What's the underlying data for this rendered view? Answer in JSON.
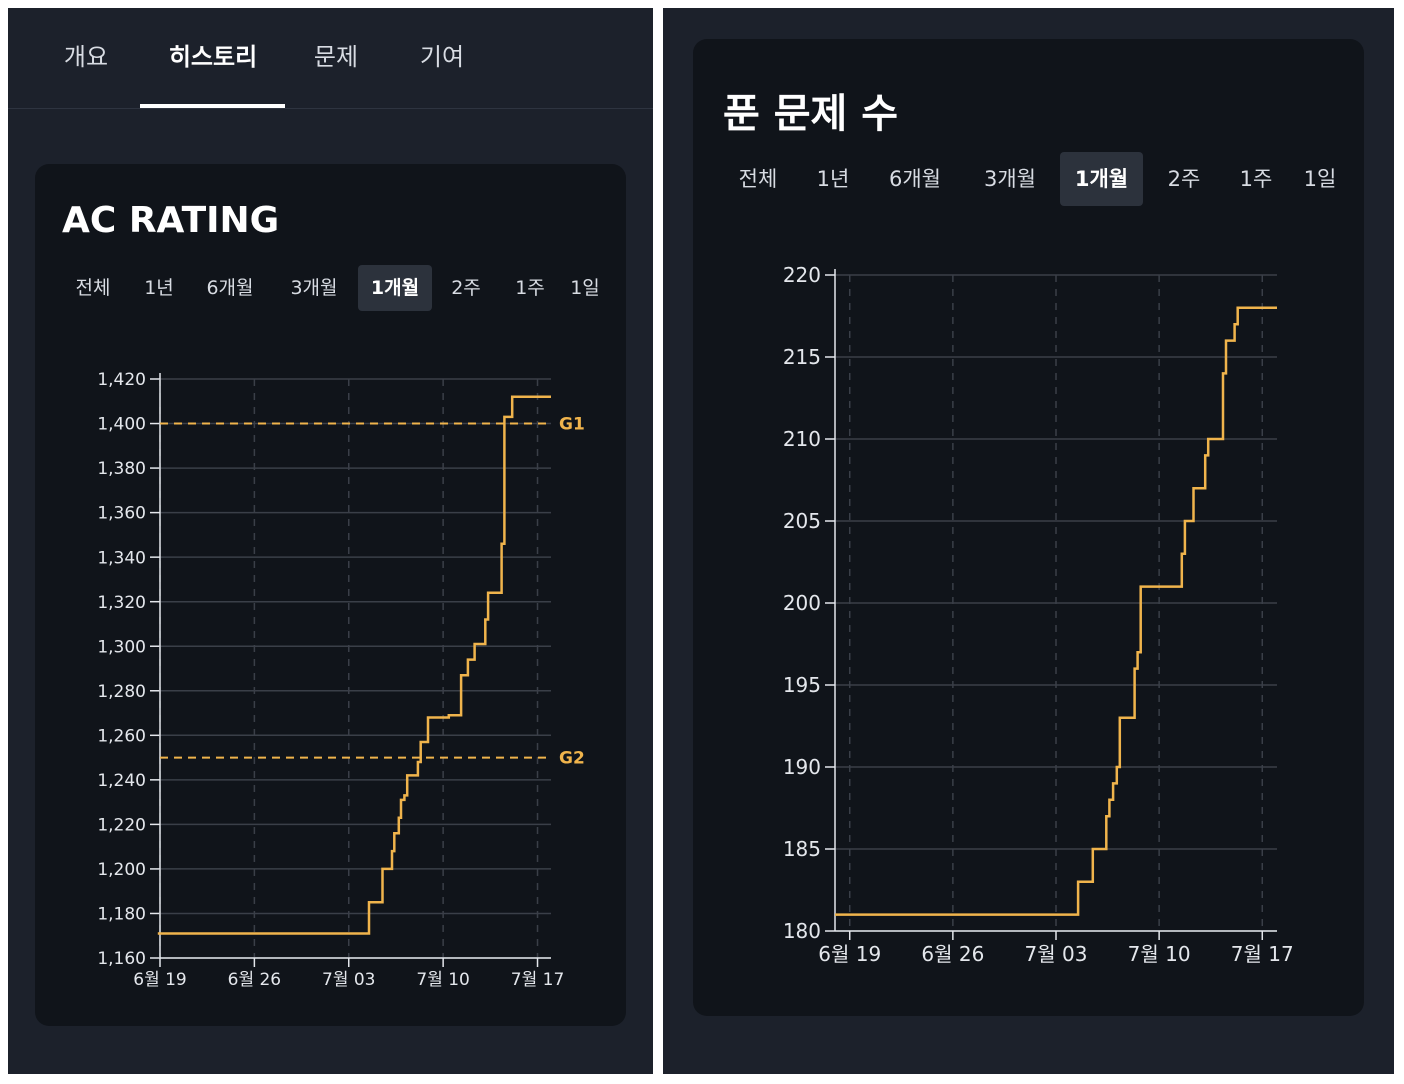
{
  "colors": {
    "series": "#f0b44c",
    "panel_bg": "#1c212b",
    "card_bg": "#10141a",
    "grid": "#3a3f48",
    "text": "#e4e7ec",
    "active_pill": "#2c323c"
  },
  "profile_tabs": [
    {
      "label": "개요",
      "active": false
    },
    {
      "label": "히스토리",
      "active": true
    },
    {
      "label": "문제",
      "active": false
    },
    {
      "label": "기여",
      "active": false
    }
  ],
  "ac_rating": {
    "title": "AC RATING",
    "ranges": [
      {
        "label": "전체",
        "active": false
      },
      {
        "label": "1년",
        "active": false
      },
      {
        "label": "6개월",
        "active": false
      },
      {
        "label": "3개월",
        "active": false
      },
      {
        "label": "1개월",
        "active": true
      },
      {
        "label": "2주",
        "active": false
      },
      {
        "label": "1주",
        "active": false
      },
      {
        "label": "1일",
        "active": false
      }
    ]
  },
  "solved_count": {
    "title": "푼 문제 수",
    "ranges": [
      {
        "label": "전체",
        "active": false
      },
      {
        "label": "1년",
        "active": false
      },
      {
        "label": "6개월",
        "active": false
      },
      {
        "label": "3개월",
        "active": false
      },
      {
        "label": "1개월",
        "active": true
      },
      {
        "label": "2주",
        "active": false
      },
      {
        "label": "1주",
        "active": false
      },
      {
        "label": "1일",
        "active": false
      }
    ]
  },
  "chart_data": [
    {
      "type": "line",
      "step": true,
      "title": "AC RATING",
      "xlabel": "",
      "ylabel": "",
      "xlim": [
        "2023-06-19",
        "2023-07-18"
      ],
      "ylim": [
        1160,
        1420
      ],
      "x_ticks": [
        "6월 19",
        "6월 26",
        "7월 03",
        "7월 10",
        "7월 17"
      ],
      "y_ticks": [
        "1,160",
        "1,180",
        "1,200",
        "1,220",
        "1,240",
        "1,260",
        "1,280",
        "1,300",
        "1,320",
        "1,340",
        "1,360",
        "1,380",
        "1,400",
        "1,420"
      ],
      "grid": true,
      "reference_lines": [
        {
          "label": "G1",
          "value": 1400
        },
        {
          "label": "G2",
          "value": 1250
        }
      ],
      "series": [
        {
          "x": [
            "2023-06-18 20:00",
            "2023-07-04 12:00",
            "2023-07-05 12:00",
            "2023-07-06 05:00",
            "2023-07-06 09:00",
            "2023-07-06 17:00",
            "2023-07-06 21:00",
            "2023-07-07 03:00",
            "2023-07-07 08:00",
            "2023-07-08 03:00",
            "2023-07-08 08:00",
            "2023-07-08 21:00",
            "2023-07-10 10:00",
            "2023-07-11 08:00",
            "2023-07-11 20:00",
            "2023-07-12 08:00",
            "2023-07-13 03:00",
            "2023-07-13 08:00",
            "2023-07-14 08:00",
            "2023-07-14 13:00",
            "2023-07-15 03:00",
            "2023-07-18 00:00"
          ],
          "y": [
            1171,
            1185,
            1200,
            1208,
            1216,
            1223,
            1231,
            1233,
            1242,
            1248,
            1257,
            1268,
            1269,
            1287,
            1294,
            1301,
            1312,
            1324,
            1346,
            1403,
            1412,
            1412
          ]
        }
      ]
    },
    {
      "type": "line",
      "step": true,
      "title": "푼 문제 수",
      "xlabel": "",
      "ylabel": "",
      "xlim": [
        "2023-06-18",
        "2023-07-18"
      ],
      "ylim": [
        180,
        220
      ],
      "x_ticks": [
        "6월 19",
        "6월 26",
        "7월 03",
        "7월 10",
        "7월 17"
      ],
      "y_ticks": [
        "180",
        "185",
        "190",
        "195",
        "200",
        "205",
        "210",
        "215",
        "220"
      ],
      "grid": true,
      "series": [
        {
          "x": [
            "2023-06-18 00:00",
            "2023-07-04 12:00",
            "2023-07-05 12:00",
            "2023-07-06 10:00",
            "2023-07-06 15:00",
            "2023-07-06 21:00",
            "2023-07-07 03:00",
            "2023-07-07 08:00",
            "2023-07-07 14:00",
            "2023-07-08 08:00",
            "2023-07-08 13:00",
            "2023-07-08 18:00",
            "2023-07-09 04:00",
            "2023-07-11 13:00",
            "2023-07-11 18:00",
            "2023-07-12 08:00",
            "2023-07-13 03:00",
            "2023-07-13 08:00",
            "2023-07-14 08:00",
            "2023-07-14 13:00",
            "2023-07-15 03:00",
            "2023-07-15 08:00",
            "2023-07-18 00:00"
          ],
          "y": [
            181,
            183,
            185,
            187,
            188,
            189,
            190,
            193,
            193,
            196,
            197,
            201,
            201,
            203,
            205,
            207,
            209,
            210,
            214,
            216,
            217,
            218,
            218
          ]
        }
      ]
    }
  ]
}
